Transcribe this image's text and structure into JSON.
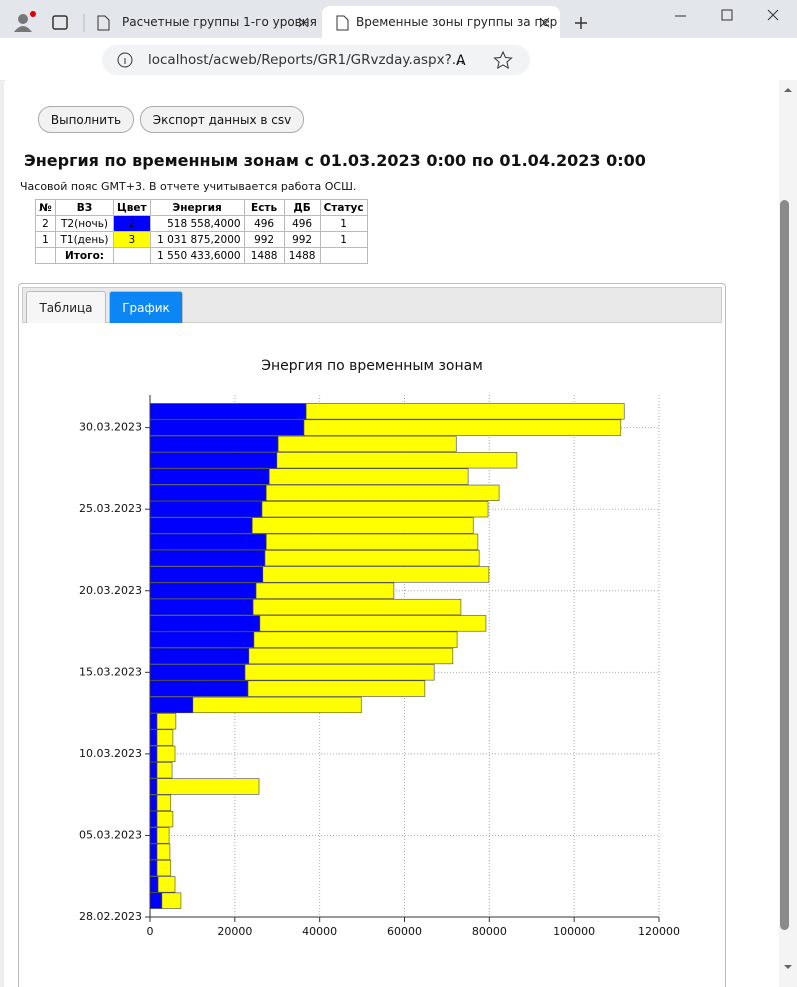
{
  "browser": {
    "tabs": [
      "Расчетные группы 1-го уровня",
      "Временные зоны группы за пер"
    ],
    "url": "localhost/acweb/Reports/GR1/GRvzday.aspx?...",
    "badge": "1"
  },
  "page": {
    "buttons": [
      "Выполнить",
      "Экспорт данных в csv"
    ],
    "heading": "Энергия по временным зонам с 01.03.2023 0:00 по 01.04.2023 0:00",
    "note": "Часовой пояс GMT+3. В отчете учитывается работа ОСШ.",
    "tabs": [
      "Таблица",
      "График"
    ],
    "active_tab": 1
  },
  "table": {
    "header": [
      "№",
      "ВЗ",
      "Цвет",
      "Энергия",
      "Есть",
      "ДБ",
      "Статус"
    ],
    "rows": [
      {
        "cells": [
          "2",
          "Т2(ночь)",
          "2",
          "518 558,4000",
          "496",
          "496",
          "1"
        ],
        "color": "#0000ff"
      },
      {
        "cells": [
          "1",
          "Т1(день)",
          "3",
          "1 031 875,2000",
          "992",
          "992",
          "1"
        ],
        "color": "#ffff00"
      }
    ],
    "total": {
      "label": "Итого:",
      "energy": "1 550 433,6000",
      "present": "1488",
      "db": "1488"
    }
  },
  "chart_data": {
    "type": "stacked-barh",
    "title": "Энергия по временным зонам",
    "dates": [
      "2023-03-01",
      "2023-03-02",
      "2023-03-03",
      "2023-03-04",
      "2023-03-05",
      "2023-03-06",
      "2023-03-07",
      "2023-03-08",
      "2023-03-09",
      "2023-03-10",
      "2023-03-11",
      "2023-03-12",
      "2023-03-13",
      "2023-03-14",
      "2023-03-15",
      "2023-03-16",
      "2023-03-17",
      "2023-03-18",
      "2023-03-19",
      "2023-03-20",
      "2023-03-21",
      "2023-03-22",
      "2023-03-23",
      "2023-03-24",
      "2023-03-25",
      "2023-03-26",
      "2023-03-27",
      "2023-03-28",
      "2023-03-29",
      "2023-03-30",
      "2023-03-31"
    ],
    "series": [
      {
        "color": "#0000ff",
        "values": [
          2800,
          1900,
          1650,
          1650,
          1650,
          1650,
          1650,
          1650,
          1650,
          1650,
          1650,
          1650,
          10100,
          23100,
          22400,
          23300,
          24500,
          25900,
          24300,
          25000,
          26600,
          27100,
          27400,
          24100,
          26400,
          27400,
          28100,
          29900,
          30200,
          36300,
          36800
        ]
      },
      {
        "color": "#ffff00",
        "values": [
          4500,
          4000,
          3250,
          3050,
          2850,
          3750,
          3250,
          24050,
          3550,
          4250,
          3750,
          4450,
          39700,
          41700,
          44600,
          48100,
          47900,
          53300,
          49000,
          32500,
          53300,
          50500,
          49900,
          52100,
          53300,
          54900,
          46900,
          56600,
          42000,
          74700,
          75000
        ]
      }
    ],
    "xlim": [
      0,
      120000
    ],
    "xticks": [
      0,
      20000,
      40000,
      60000,
      80000,
      100000,
      120000
    ],
    "ylim": [
      "2023-02-28",
      "2023-04-01"
    ],
    "yticks": [
      {
        "value": "2023-02-28",
        "label": "28.02.2023"
      },
      {
        "value": "2023-03-05",
        "label": "05.03.2023"
      },
      {
        "value": "2023-03-10",
        "label": "10.03.2023"
      },
      {
        "value": "2023-03-15",
        "label": "15.03.2023"
      },
      {
        "value": "2023-03-20",
        "label": "20.03.2023"
      },
      {
        "value": "2023-03-25",
        "label": "25.03.2023"
      },
      {
        "value": "2023-03-30",
        "label": "30.03.2023"
      }
    ],
    "grid": true
  }
}
